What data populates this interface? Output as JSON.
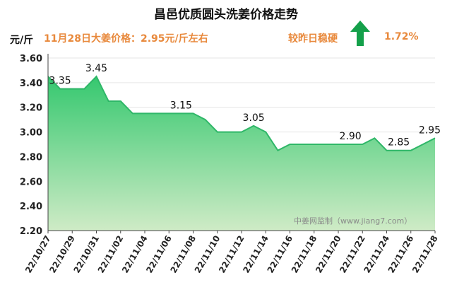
{
  "header": {
    "title": "昌邑优质圆头洗姜价格走势",
    "unit": "元/斤",
    "price_text": "11月28日大姜价格：2.95元/斤左右",
    "compare_label": "较昨日稳硬",
    "change_pct": "1.72%"
  },
  "watermark": "中姜网监制（www.jiang7.com）",
  "colors": {
    "line": "#2fb768",
    "fill_top": "#35c86f",
    "fill_bottom": "#cfebc6",
    "accent": "#e8893c",
    "arrow": "#14a04a"
  },
  "chart_data": {
    "type": "area",
    "title": "昌邑优质圆头洗姜价格走势",
    "ylabel": "元/斤",
    "ylim": [
      2.2,
      3.6
    ],
    "yticks": [
      "2.20",
      "2.40",
      "2.60",
      "2.80",
      "3.00",
      "3.20",
      "3.40",
      "3.60"
    ],
    "x": [
      "22/10/27",
      "22/10/28",
      "22/10/29",
      "22/10/30",
      "22/10/31",
      "22/11/01",
      "22/11/02",
      "22/11/03",
      "22/11/04",
      "22/11/05",
      "22/11/06",
      "22/11/07",
      "22/11/08",
      "22/11/09",
      "22/11/10",
      "22/11/11",
      "22/11/12",
      "22/11/13",
      "22/11/14",
      "22/11/15",
      "22/11/16",
      "22/11/17",
      "22/11/18",
      "22/11/19",
      "22/11/20",
      "22/11/21",
      "22/11/22",
      "22/11/23",
      "22/11/24",
      "22/11/25",
      "22/11/26",
      "22/11/27",
      "22/11/28"
    ],
    "xticks": [
      "22/10/27",
      "22/10/29",
      "22/10/31",
      "22/11/02",
      "22/11/04",
      "22/11/06",
      "22/11/08",
      "22/11/10",
      "22/11/12",
      "22/11/14",
      "22/11/16",
      "22/11/18",
      "22/11/20",
      "22/11/22",
      "22/11/24",
      "22/11/26",
      "22/11/28"
    ],
    "values": [
      3.45,
      3.35,
      3.35,
      3.35,
      3.45,
      3.25,
      3.25,
      3.15,
      3.15,
      3.15,
      3.15,
      3.15,
      3.15,
      3.1,
      3.0,
      3.0,
      3.0,
      3.05,
      3.0,
      2.85,
      2.9,
      2.9,
      2.9,
      2.9,
      2.9,
      2.9,
      2.9,
      2.95,
      2.85,
      2.85,
      2.85,
      2.9,
      2.95
    ],
    "data_labels": [
      {
        "index": 1,
        "text": "3.35"
      },
      {
        "index": 4,
        "text": "3.45"
      },
      {
        "index": 11,
        "text": "3.15"
      },
      {
        "index": 17,
        "text": "3.05"
      },
      {
        "index": 25,
        "text": "2.90"
      },
      {
        "index": 29,
        "text": "2.85"
      },
      {
        "index": 32,
        "text": "2.95"
      }
    ]
  }
}
